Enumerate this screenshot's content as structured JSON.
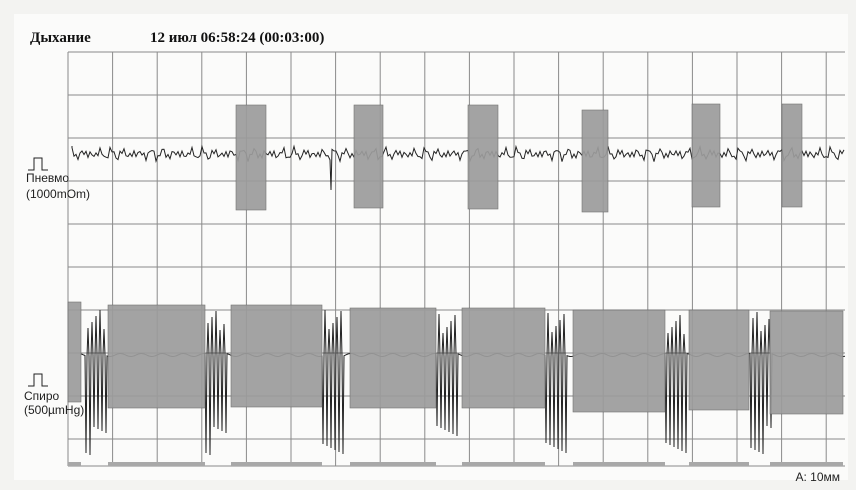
{
  "header": {
    "title": "Дыхание",
    "timestamp": "12 июл 06:58:24 (00:03:00)"
  },
  "channels": [
    {
      "name": "Пневмо",
      "scale": "(1000mOm)"
    },
    {
      "name": "Спиро",
      "scale": "(500µmHg)"
    }
  ],
  "footer": {
    "amplitude": "A: 10мм"
  }
}
